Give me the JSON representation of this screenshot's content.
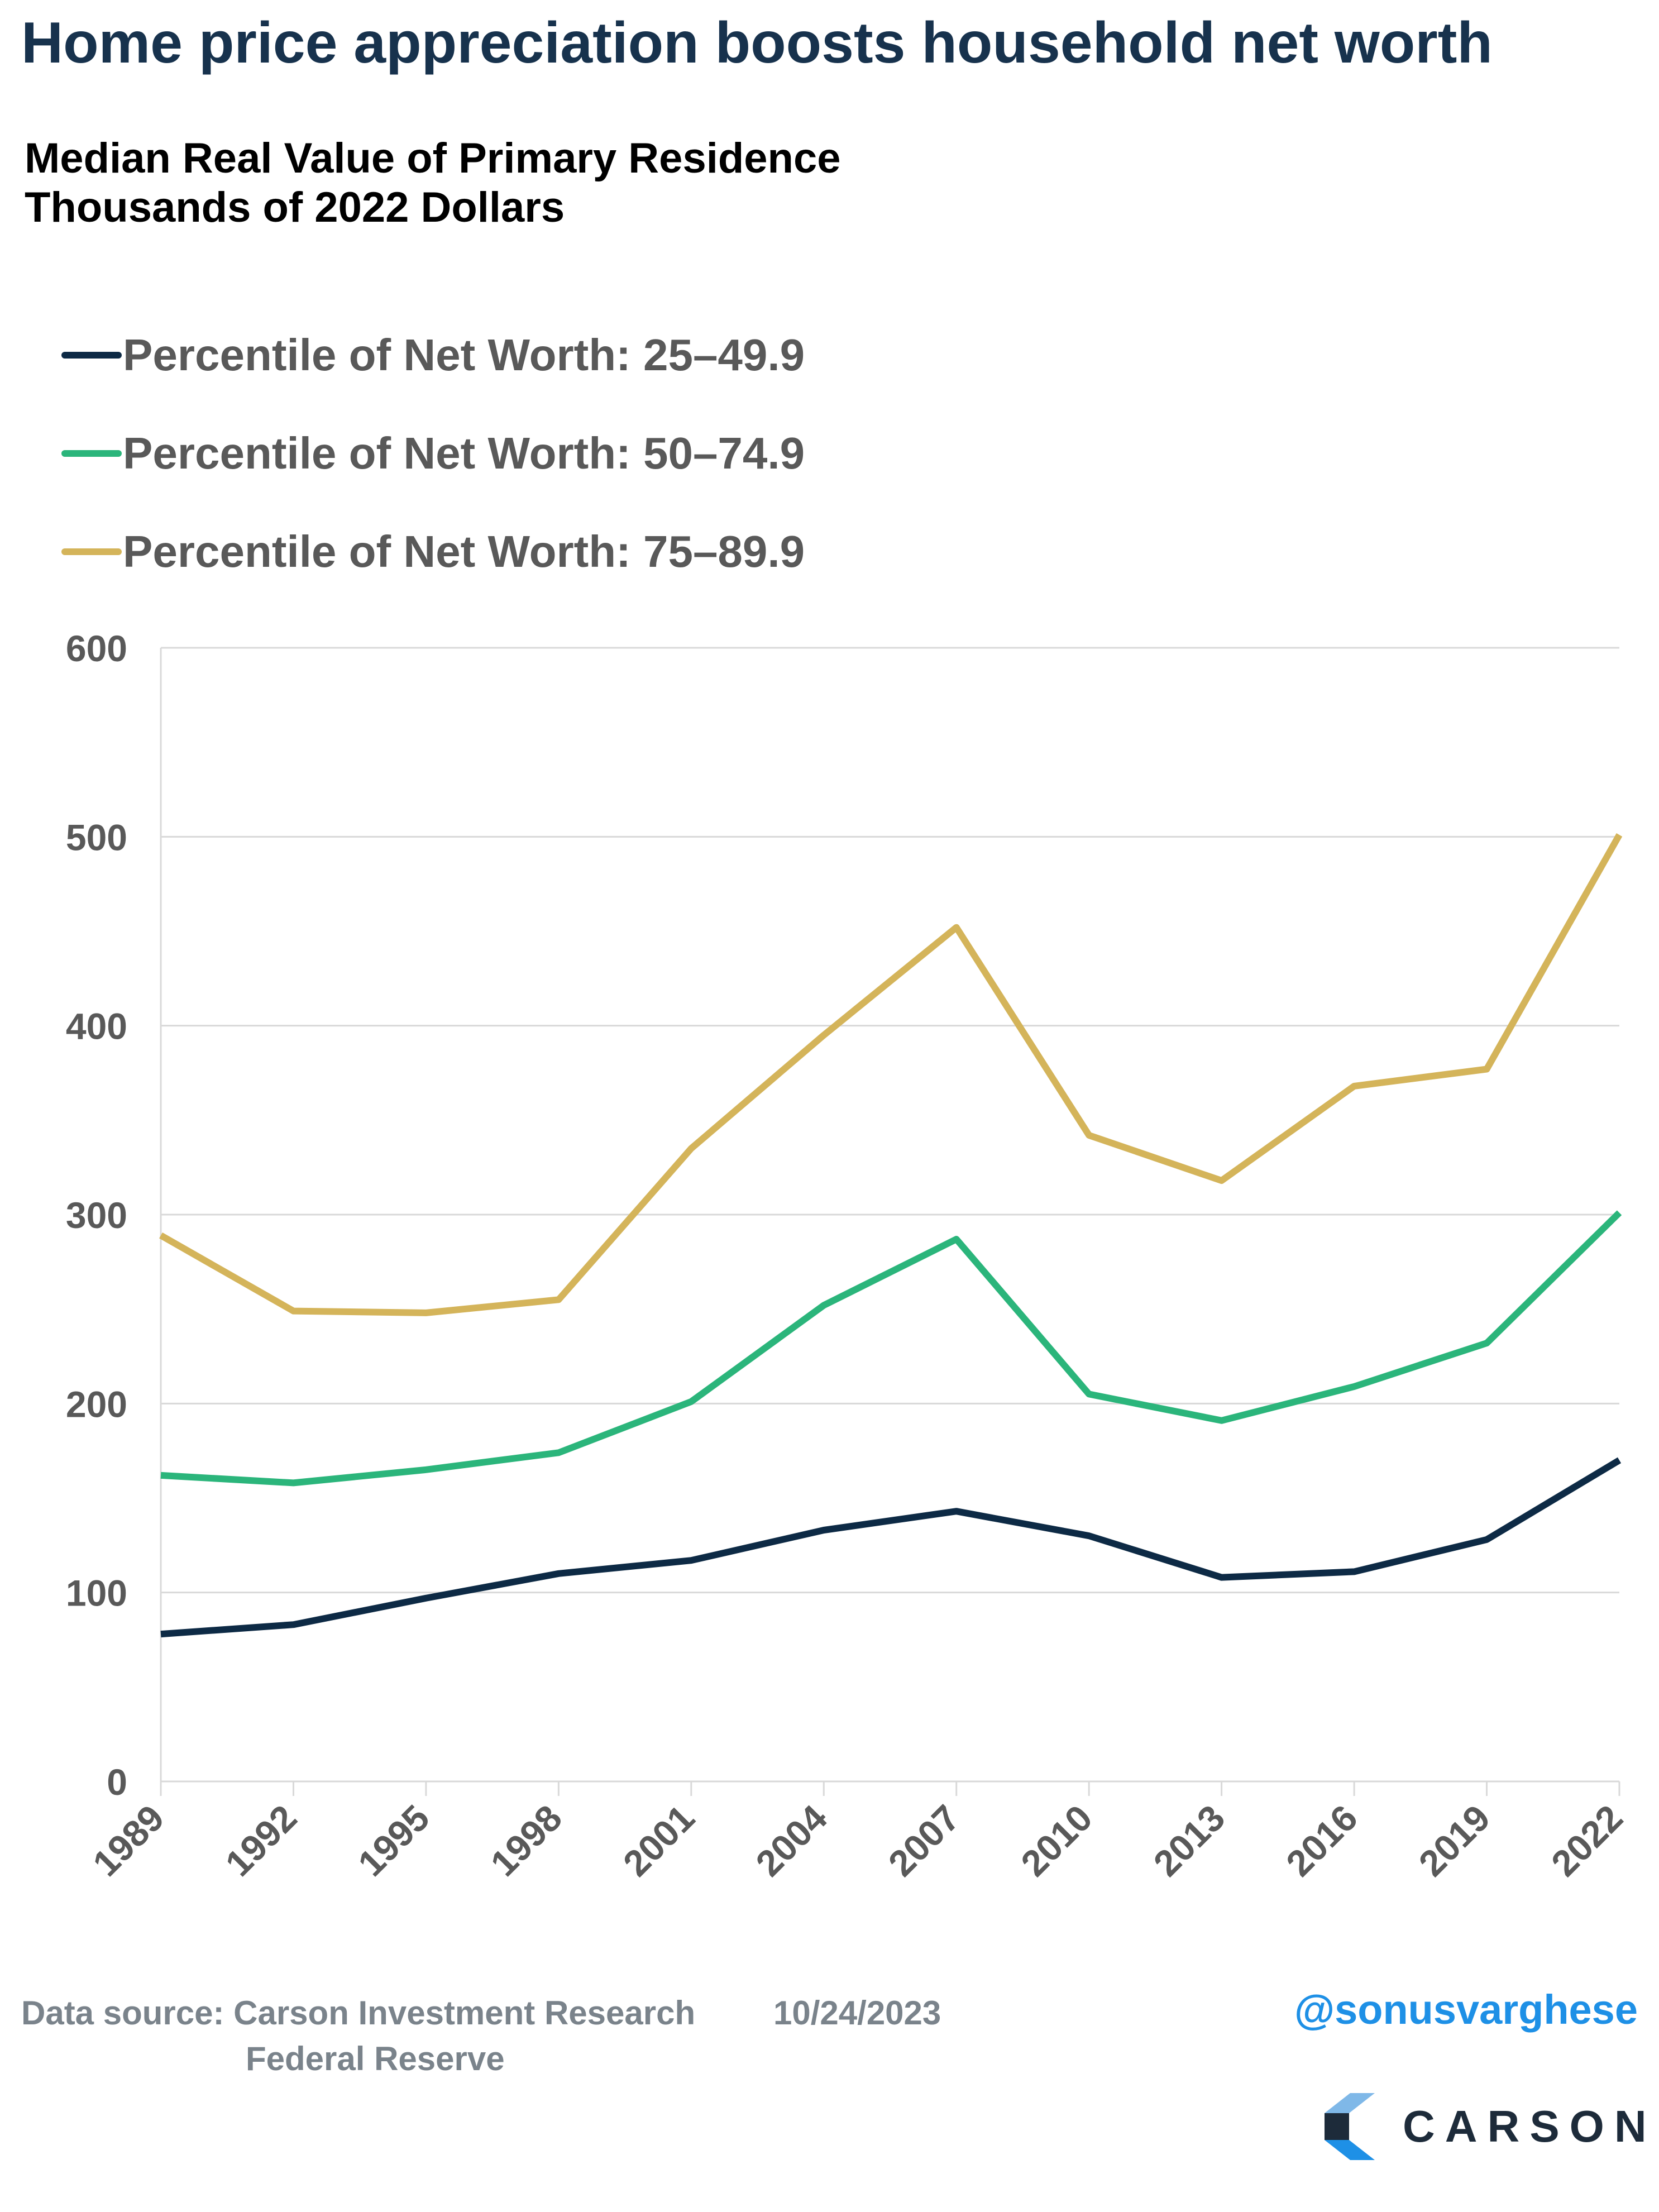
{
  "title": "Home price appreciation boosts household net worth",
  "subtitle_line1": "Median Real Value of Primary Residence",
  "subtitle_line2": "Thousands of 2022 Dollars",
  "colors": {
    "title": "#17324d",
    "series_25_49": "#0d2a45",
    "series_50_74": "#2bb57b",
    "series_75_89": "#d4b45a",
    "grid": "#d9d9d9",
    "axis_text": "#595959"
  },
  "chart_data": {
    "type": "line",
    "x": [
      "1989",
      "1992",
      "1995",
      "1998",
      "2001",
      "2004",
      "2007",
      "2010",
      "2013",
      "2016",
      "2019",
      "2022"
    ],
    "ylim": [
      0,
      600
    ],
    "yticks": [
      0,
      100,
      200,
      300,
      400,
      500,
      600
    ],
    "grid": true,
    "legend_position": "top-left",
    "series": [
      {
        "name": "Percentile of Net Worth: 25–49.9",
        "color": "#0d2a45",
        "values": [
          78,
          83,
          97,
          110,
          117,
          133,
          143,
          130,
          108,
          111,
          128,
          170
        ]
      },
      {
        "name": "Percentile of Net Worth: 50–74.9",
        "color": "#2bb57b",
        "values": [
          162,
          158,
          165,
          174,
          201,
          252,
          287,
          205,
          191,
          209,
          232,
          301
        ]
      },
      {
        "name": "Percentile of Net Worth: 75–89.9",
        "color": "#d4b45a",
        "values": [
          289,
          249,
          248,
          255,
          335,
          395,
          452,
          342,
          318,
          368,
          377,
          501
        ]
      }
    ]
  },
  "footer": {
    "source_label": "Data source: Carson Investment Research",
    "source_line2": "Federal Reserve",
    "date": "10/24/2023",
    "handle": "@sonusvarghese",
    "logo_text": "CARSON"
  }
}
